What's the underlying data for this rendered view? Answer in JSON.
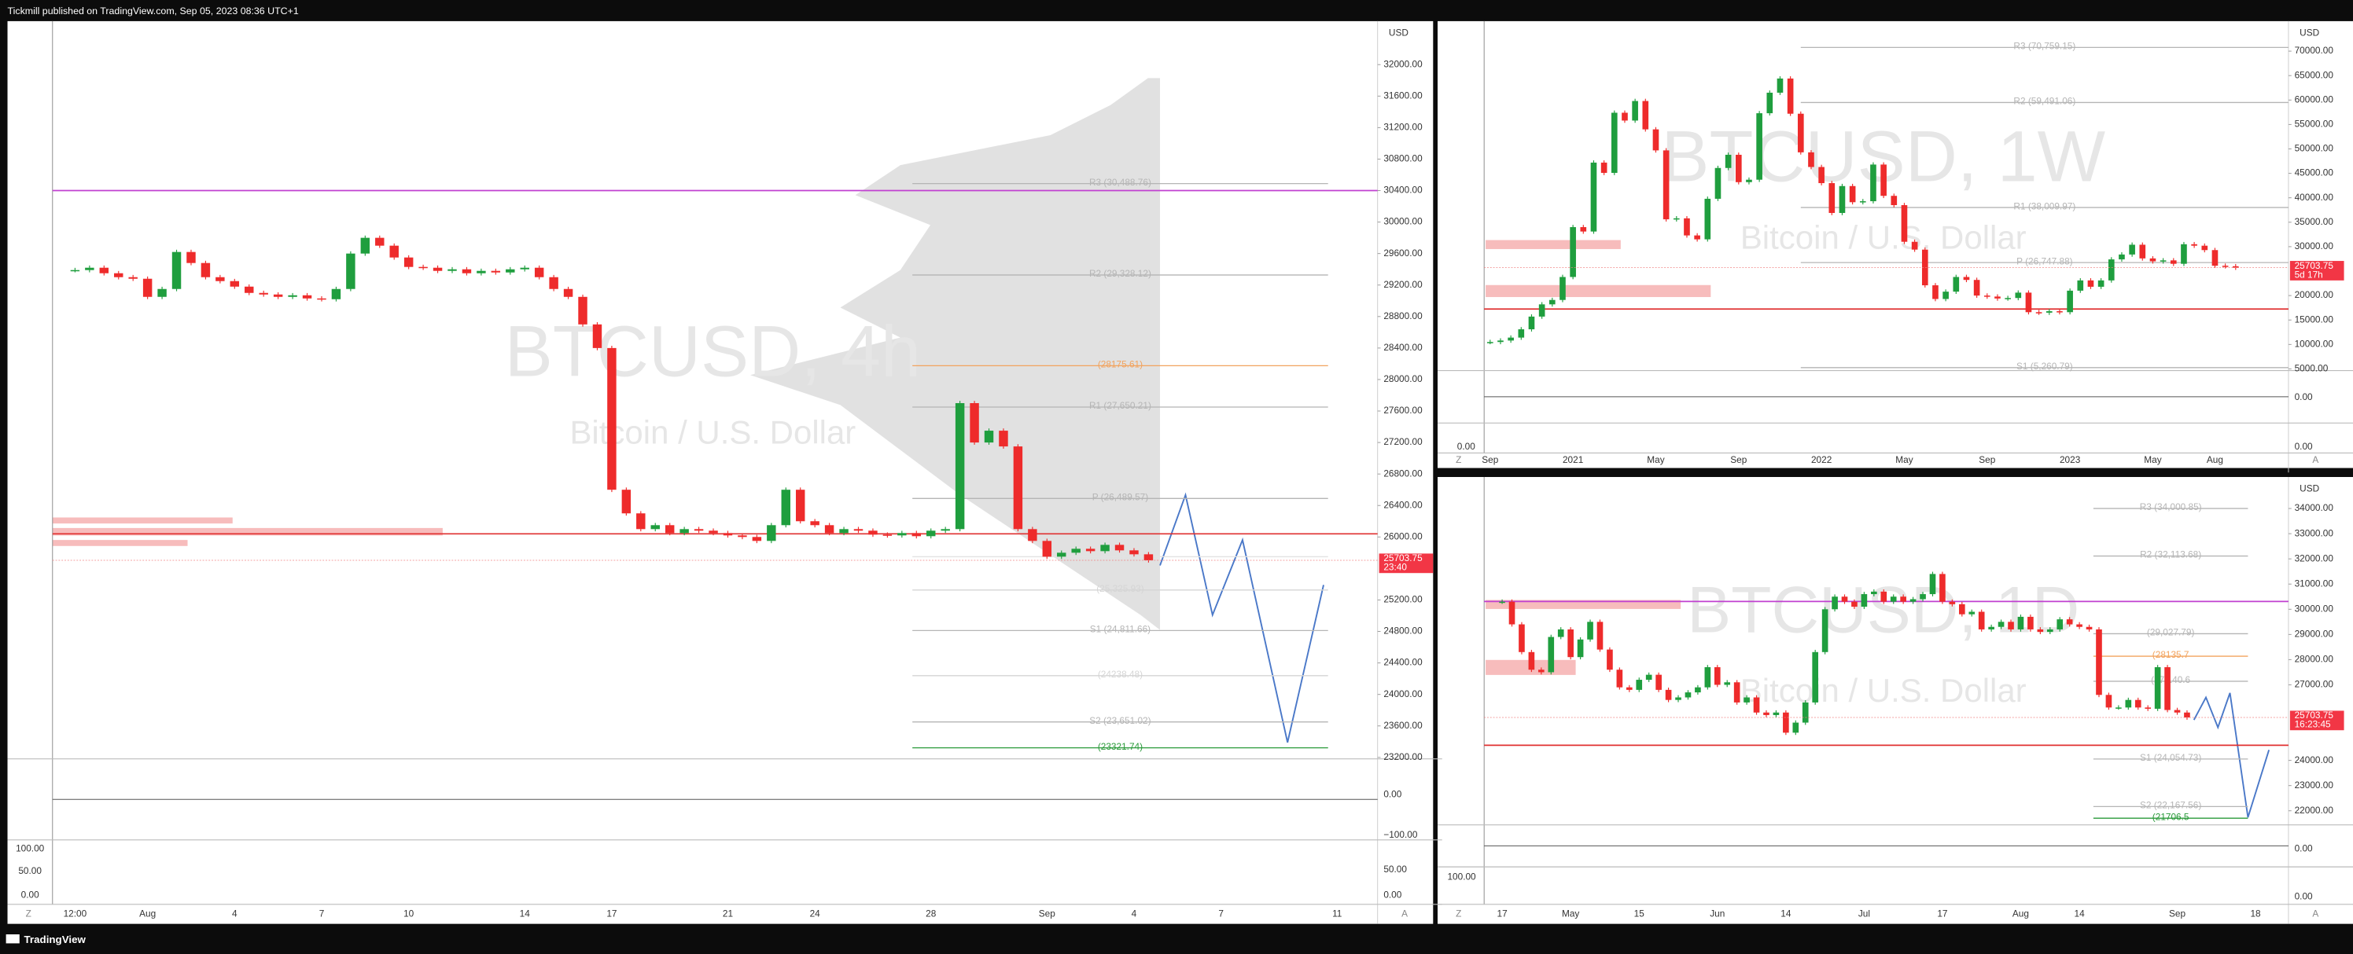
{
  "header": {
    "text": "Tickmill published on TradingView.com, Sep 05, 2023 08:36 UTC+1"
  },
  "footer": {
    "brand": "TradingView"
  },
  "chart_data": [
    {
      "type": "candlestick",
      "symbol_watermark": "BTCUSD, 4h",
      "name_watermark": "Bitcoin / U.S. Dollar",
      "currency": "USD",
      "up_color": "#1f9e3e",
      "down_color": "#ee2b2b",
      "categories": [
        "12:00",
        null,
        null,
        null,
        null,
        "Aug",
        null,
        null,
        null,
        null,
        null,
        "4",
        null,
        null,
        null,
        null,
        null,
        "7",
        null,
        null,
        null,
        null,
        null,
        "10",
        null,
        null,
        null,
        null,
        null,
        null,
        null,
        "14",
        null,
        null,
        null,
        null,
        null,
        "17",
        null,
        null,
        null,
        null,
        null,
        null,
        null,
        "21",
        null,
        null,
        null,
        null,
        null,
        "24",
        null,
        null,
        null,
        null,
        null,
        null,
        null,
        "28",
        null,
        null,
        null,
        null,
        null,
        null,
        null,
        "Sep",
        null,
        null,
        null,
        null,
        null,
        "4",
        null,
        null,
        null,
        null,
        null,
        "7",
        null,
        null,
        null,
        null,
        null,
        null,
        null,
        "11"
      ],
      "values": [
        29390,
        29420,
        29350,
        29300,
        29280,
        29050,
        29150,
        29620,
        29480,
        29300,
        29250,
        29180,
        29100,
        29080,
        29050,
        29070,
        29030,
        29020,
        29150,
        29600,
        29800,
        29700,
        29550,
        29430,
        29420,
        29380,
        29400,
        29350,
        29380,
        29360,
        29400,
        29420,
        29300,
        29150,
        29050,
        28700,
        28400,
        26600,
        26300,
        26100,
        26150,
        26050,
        26100,
        26080,
        26050,
        26020,
        26000,
        25950,
        26150,
        26600,
        26200,
        26150,
        26050,
        26100,
        26080,
        26030,
        26020,
        26050,
        26010,
        26080,
        26100,
        27700,
        27200,
        27350,
        27150,
        26100,
        25950,
        25750,
        25800,
        25850,
        25820,
        25900,
        25830,
        25780,
        25703.75,
        null,
        null,
        null,
        null,
        null,
        null,
        null,
        null,
        null,
        null,
        null,
        null,
        null
      ],
      "ylim": [
        23181,
        32552
      ],
      "yticks": [
        {
          "value": 32000,
          "label": "32000.00"
        },
        {
          "value": 31600,
          "label": "31600.00"
        },
        {
          "value": 31200,
          "label": "31200.00"
        },
        {
          "value": 30800,
          "label": "30800.00"
        },
        {
          "value": 30400,
          "label": "30400.00"
        },
        {
          "value": 30000,
          "label": "30000.00"
        },
        {
          "value": 29600,
          "label": "29600.00"
        },
        {
          "value": 29200,
          "label": "29200.00"
        },
        {
          "value": 28800,
          "label": "28800.00"
        },
        {
          "value": 28400,
          "label": "28400.00"
        },
        {
          "value": 28000,
          "label": "28000.00"
        },
        {
          "value": 27600,
          "label": "27600.00"
        },
        {
          "value": 27200,
          "label": "27200.00"
        },
        {
          "value": 26800,
          "label": "26800.00"
        },
        {
          "value": 26400,
          "label": "26400.00"
        },
        {
          "value": 26000,
          "label": "26000.00"
        },
        {
          "value": 25200,
          "label": "25200.00"
        },
        {
          "value": 24800,
          "label": "24800.00"
        },
        {
          "value": 24400,
          "label": "24400.00"
        },
        {
          "value": 24000,
          "label": "24000.00"
        },
        {
          "value": 23600,
          "label": "23600.00"
        },
        {
          "value": 23200,
          "label": "23200.00"
        }
      ],
      "levels": [
        {
          "label": "R3 (30,488.76)",
          "value": 30488.76,
          "color": "#b5b5b5"
        },
        {
          "label": "R2 (29,328.12)",
          "value": 29328.12,
          "color": "#b5b5b5"
        },
        {
          "label": "(28175.61)",
          "value": 28175.61,
          "color": "#f2a35e"
        },
        {
          "label": "R1 (27,650.21)",
          "value": 27650.21,
          "color": "#b5b5b5"
        },
        {
          "label": "P (26,489.57)",
          "value": 26489.57,
          "color": "#b5b5b5"
        },
        {
          "label": "(25749.61)",
          "value": 25749.61,
          "color": "#e2e2e2"
        },
        {
          "label": "(25,325.93)",
          "value": 25325.93,
          "color": "#d5d5d5"
        },
        {
          "label": "S1 (24,811.66)",
          "value": 24811.66,
          "color": "#b5b5b5"
        },
        {
          "label": "(24238.48)",
          "value": 24238.48,
          "color": "#d5d5d5"
        },
        {
          "label": "S2 (23,651.02)",
          "value": 23651.02,
          "color": "#b5b5b5"
        },
        {
          "label": "(23321.74)",
          "value": 23321.74,
          "color": "#2a9a3a"
        }
      ],
      "lines": [
        {
          "value": 26040,
          "color": "#e03030"
        },
        {
          "value": 30400,
          "color": "#c040d0"
        }
      ],
      "countdown": "23:40",
      "oscillator_ticks": [
        "0.00",
        "−100.00",
        "50.00",
        "0.00"
      ],
      "side_labels": [
        "100.00",
        "50.00",
        "0.00"
      ],
      "corner_labels": [
        "Z",
        "A"
      ]
    },
    {
      "type": "candlestick",
      "symbol_watermark": "BTCUSD, 1W",
      "name_watermark": "Bitcoin / U.S. Dollar",
      "currency": "USD",
      "up_color": "#1f9e3e",
      "down_color": "#ee2b2b",
      "categories": [
        "Sep",
        null,
        null,
        null,
        null,
        null,
        null,
        null,
        "2021",
        null,
        null,
        null,
        null,
        null,
        null,
        null,
        "May",
        null,
        null,
        null,
        null,
        null,
        null,
        null,
        "Sep",
        null,
        null,
        null,
        null,
        null,
        null,
        null,
        "2022",
        null,
        null,
        null,
        null,
        null,
        null,
        null,
        "May",
        null,
        null,
        null,
        null,
        null,
        null,
        null,
        "Sep",
        null,
        null,
        null,
        null,
        null,
        null,
        null,
        "2023",
        null,
        null,
        null,
        null,
        null,
        null,
        null,
        "May",
        null,
        null,
        null,
        null,
        null,
        "Aug",
        null,
        null,
        null,
        null,
        null,
        null,
        null
      ],
      "values": [
        10500,
        10800,
        11400,
        13100,
        15700,
        18200,
        19100,
        23800,
        34000,
        33100,
        47200,
        45100,
        57400,
        55800,
        59800,
        54000,
        49700,
        35600,
        35800,
        32300,
        31500,
        39800,
        46100,
        48800,
        43200,
        43700,
        57300,
        61500,
        64400,
        57200,
        49300,
        46300,
        43000,
        36900,
        42400,
        39100,
        39300,
        46800,
        40400,
        38500,
        31000,
        29400,
        22100,
        19300,
        20800,
        23800,
        23200,
        20000,
        19800,
        19400,
        19500,
        20600,
        16600,
        16500,
        16800,
        16600,
        21000,
        23100,
        21800,
        23100,
        27400,
        28400,
        30400,
        27600,
        27000,
        27200,
        26500,
        30500,
        30200,
        29300,
        26100,
        26000,
        25703.75,
        null,
        null,
        null,
        null,
        null
      ],
      "ylim": [
        4663,
        76135
      ],
      "yticks": [
        {
          "value": 70000,
          "label": "70000.00"
        },
        {
          "value": 65000,
          "label": "65000.00"
        },
        {
          "value": 60000,
          "label": "60000.00"
        },
        {
          "value": 55000,
          "label": "55000.00"
        },
        {
          "value": 50000,
          "label": "50000.00"
        },
        {
          "value": 45000,
          "label": "45000.00"
        },
        {
          "value": 40000,
          "label": "40000.00"
        },
        {
          "value": 35000,
          "label": "35000.00"
        },
        {
          "value": 30000,
          "label": "30000.00"
        },
        {
          "value": 20000,
          "label": "20000.00"
        },
        {
          "value": 15000,
          "label": "15000.00"
        },
        {
          "value": 10000,
          "label": "10000.00"
        },
        {
          "value": 5000,
          "label": "5000.00"
        }
      ],
      "levels": [
        {
          "label": "R3 (70,759.15)",
          "value": 70759.15,
          "color": "#b5b5b5"
        },
        {
          "label": "R2 (59,491.06)",
          "value": 59491.06,
          "color": "#b5b5b5"
        },
        {
          "label": "R1 (38,009.97)",
          "value": 38009.97,
          "color": "#b5b5b5"
        },
        {
          "label": "P (26,747.88)",
          "value": 26747.88,
          "color": "#b5b5b5"
        },
        {
          "label": "S1 (5,260.79)",
          "value": 5260.79,
          "color": "#b5b5b5"
        }
      ],
      "lines": [
        {
          "value": 17240,
          "color": "#e03030"
        }
      ],
      "countdown": "5d 17h",
      "oscillator_ticks": [
        "0.00",
        "0.00"
      ],
      "side_labels": [
        "0.00"
      ],
      "corner_labels": [
        "Z",
        "A"
      ]
    },
    {
      "type": "candlestick",
      "symbol_watermark": "BTCUSD, 1D",
      "name_watermark": "Bitcoin / U.S. Dollar",
      "currency": "USD",
      "up_color": "#1f9e3e",
      "down_color": "#ee2b2b",
      "categories": [
        "17",
        null,
        null,
        null,
        null,
        null,
        null,
        "May",
        null,
        null,
        null,
        null,
        null,
        null,
        "15",
        null,
        null,
        null,
        null,
        null,
        null,
        null,
        "Jun",
        null,
        null,
        null,
        null,
        null,
        null,
        "14",
        null,
        null,
        null,
        null,
        null,
        null,
        null,
        "Jul",
        null,
        null,
        null,
        null,
        null,
        null,
        null,
        "17",
        null,
        null,
        null,
        null,
        null,
        null,
        null,
        "Aug",
        null,
        null,
        null,
        null,
        null,
        "14",
        null,
        null,
        null,
        null,
        null,
        null,
        null,
        null,
        null,
        "Sep",
        null,
        null,
        null,
        null,
        null,
        null,
        null,
        "18",
        null,
        null,
        null
      ],
      "values": [
        30300,
        29400,
        28300,
        27600,
        27500,
        28900,
        29200,
        28100,
        28800,
        29500,
        28400,
        27600,
        26900,
        26800,
        27200,
        27400,
        26800,
        26400,
        26500,
        26700,
        26900,
        27700,
        27000,
        27100,
        26300,
        26500,
        25900,
        25800,
        25900,
        25100,
        25500,
        26300,
        28300,
        30000,
        30500,
        30300,
        30100,
        30600,
        30700,
        30300,
        30500,
        30300,
        30400,
        30600,
        31400,
        30300,
        30200,
        29800,
        29900,
        29200,
        29300,
        29500,
        29200,
        29700,
        29200,
        29100,
        29200,
        29600,
        29400,
        29300,
        29200,
        26600,
        26100,
        26100,
        26400,
        26100,
        26050,
        27700,
        26000,
        25900,
        25703.75,
        null,
        null,
        null,
        null,
        null,
        null,
        null,
        null,
        null,
        null
      ],
      "ylim": [
        21440,
        35250
      ],
      "yticks": [
        {
          "value": 34000,
          "label": "34000.00"
        },
        {
          "value": 33000,
          "label": "33000.00"
        },
        {
          "value": 32000,
          "label": "32000.00"
        },
        {
          "value": 31000,
          "label": "31000.00"
        },
        {
          "value": 30000,
          "label": "30000.00"
        },
        {
          "value": 29000,
          "label": "29000.00"
        },
        {
          "value": 28000,
          "label": "28000.00"
        },
        {
          "value": 27000,
          "label": "27000.00"
        },
        {
          "value": 24000,
          "label": "24000.00"
        },
        {
          "value": 23000,
          "label": "23000.00"
        },
        {
          "value": 22000,
          "label": "22000.00"
        }
      ],
      "levels": [
        {
          "label": "R3 (34,000.85)",
          "value": 34000.85,
          "color": "#b5b5b5"
        },
        {
          "label": "R2 (32,113.68)",
          "value": 32113.68,
          "color": "#b5b5b5"
        },
        {
          "label": "(29,027.79)",
          "value": 29027.79,
          "color": "#b5b5b5"
        },
        {
          "label": "(28135.7",
          "value": 28135.7,
          "color": "#f2a35e"
        },
        {
          "label": "(27,140.6",
          "value": 27140.6,
          "color": "#b5b5b5"
        },
        {
          "label": "S1 (24,054.73)",
          "value": 24054.73,
          "color": "#b5b5b5"
        },
        {
          "label": "S2 (22,167.56)",
          "value": 22167.56,
          "color": "#b5b5b5"
        },
        {
          "label": "(21706.5",
          "value": 21706.5,
          "color": "#2a9a3a"
        }
      ],
      "lines": [
        {
          "value": 24600,
          "color": "#e03030"
        },
        {
          "value": 30310,
          "color": "#c040d0"
        }
      ],
      "countdown": "16:23:45",
      "oscillator_ticks": [
        "0.00",
        "0.00"
      ],
      "side_labels": [
        "100.00"
      ],
      "corner_labels": [
        "Z",
        "A"
      ]
    }
  ]
}
